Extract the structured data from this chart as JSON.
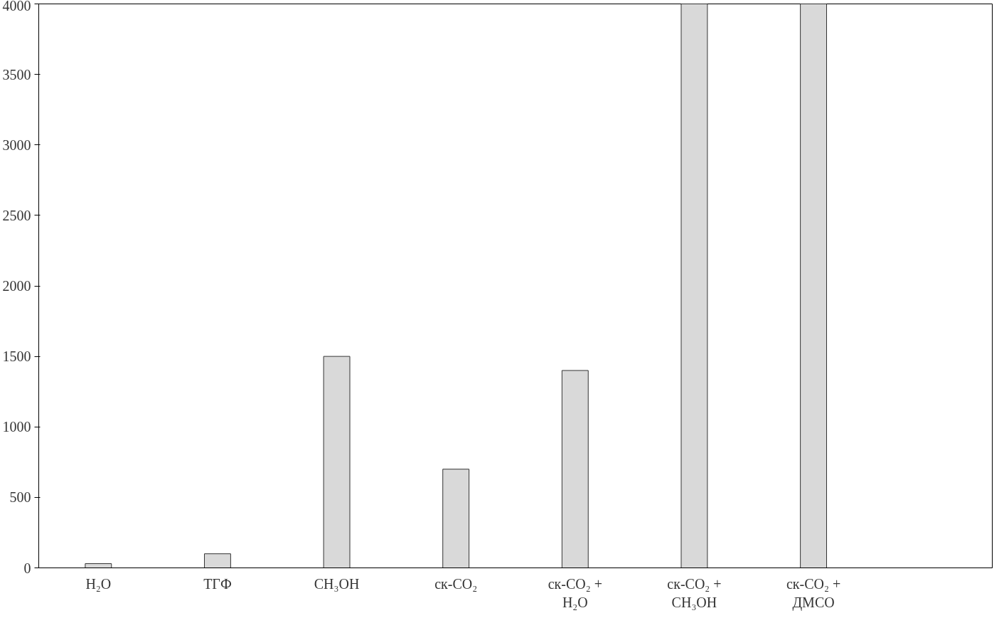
{
  "chart_data": {
    "type": "bar",
    "categories": [
      "H₂O",
      "ТГФ",
      "CH₃OH",
      "ск-CO₂",
      "ск-CO₂ +\nH₂O",
      "ск-CO₂ +\nCH₃OH",
      "ск-CO₂ +\nДМСО",
      null
    ],
    "values": [
      30,
      100,
      1500,
      700,
      1400,
      4000,
      4000,
      null
    ],
    "color": "#d9d9d9",
    "ylim": [
      0,
      4000
    ],
    "yticks": [
      0,
      500,
      1000,
      1500,
      2000,
      2500,
      3000,
      3500,
      4000
    ],
    "grid": false
  }
}
